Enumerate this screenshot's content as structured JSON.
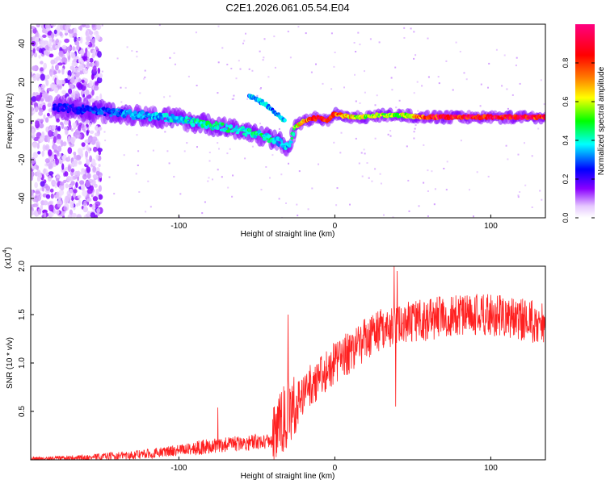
{
  "title": "C2E1.2026.061.05.54.E04",
  "colorbar": {
    "label": "Normalized spectral amplitude",
    "ticks": [
      0.0,
      0.2,
      0.4,
      0.6,
      0.8
    ],
    "tick_labels": [
      "0.0",
      "0.2",
      "0.4",
      "0.6",
      "0.8"
    ],
    "range": [
      0,
      1
    ],
    "colors": [
      "#ffffff",
      "#8a00ff",
      "#0000ff",
      "#00ffff",
      "#00ff00",
      "#ffff00",
      "#ff8000",
      "#ff0000",
      "#ff0080"
    ]
  },
  "chart_data": [
    {
      "type": "heatmap",
      "name": "spectrogram",
      "title": "C2E1.2026.061.05.54.E04",
      "xlabel": "Height of straight line (km)",
      "ylabel": "Frequency (Hz)",
      "xlim": [
        -195,
        135
      ],
      "ylim": [
        -50,
        50
      ],
      "xticks": [
        -100,
        0,
        100
      ],
      "yticks": [
        -40,
        -20,
        0,
        20,
        40
      ],
      "ridge": {
        "x": [
          -175,
          -150,
          -125,
          -100,
          -80,
          -60,
          -45,
          -35,
          -30,
          -25,
          -20,
          -15,
          -10,
          -5,
          0,
          10,
          20,
          30,
          40,
          60,
          80,
          100,
          120,
          135
        ],
        "freq": [
          7,
          5,
          3,
          1,
          -2,
          -5,
          -8,
          -11,
          -14,
          -3,
          0,
          1,
          2,
          0,
          4,
          2,
          2,
          3,
          3,
          2,
          2,
          2,
          2,
          2
        ],
        "amp": [
          0.25,
          0.3,
          0.35,
          0.4,
          0.45,
          0.45,
          0.45,
          0.4,
          0.35,
          0.6,
          0.75,
          0.85,
          0.9,
          0.95,
          0.8,
          0.7,
          0.6,
          0.6,
          0.55,
          0.9,
          0.95,
          0.95,
          0.95,
          0.95
        ]
      },
      "secondary_branch": {
        "x": [
          -55,
          -45,
          -38,
          -32
        ],
        "freq": [
          13,
          9,
          4,
          0
        ],
        "amp": 0.35
      },
      "noise_region": {
        "x": [
          -195,
          -150
        ],
        "freq": [
          -50,
          50
        ],
        "amp": 0.15
      }
    },
    {
      "type": "line",
      "name": "snr",
      "xlabel": "Height of straight line (km)",
      "ylabel": "SNR (10 * v/v)",
      "scale_label": "(x10",
      "scale_exponent": "4",
      "xlim": [
        -195,
        135
      ],
      "ylim": [
        0,
        2.0
      ],
      "xticks": [
        -100,
        0,
        100
      ],
      "yticks": [
        0.5,
        1.0,
        1.5,
        2.0
      ],
      "ytick_labels": [
        "0.5",
        "1.0",
        "1.5",
        "2.0"
      ],
      "series": [
        {
          "name": "SNR",
          "color": "#ff2020",
          "trend": {
            "x": [
              -195,
              -160,
              -120,
              -90,
              -60,
              -40,
              -32,
              -28,
              -25,
              -20,
              -10,
              0,
              10,
              20,
              30,
              40,
              60,
              80,
              100,
              120,
              135
            ],
            "y": [
              0.01,
              0.02,
              0.06,
              0.12,
              0.17,
              0.2,
              0.45,
              0.5,
              0.55,
              0.7,
              0.85,
              1.0,
              1.12,
              1.25,
              1.35,
              1.4,
              1.45,
              1.5,
              1.5,
              1.45,
              1.4
            ]
          },
          "peaks": [
            {
              "x": -75,
              "y": 0.54
            },
            {
              "x": -30,
              "y": 1.5
            },
            {
              "x": 38,
              "y": 2.0
            },
            {
              "x": 40,
              "y": 1.95
            },
            {
              "x": 39,
              "y": 0.55
            }
          ]
        }
      ]
    }
  ]
}
